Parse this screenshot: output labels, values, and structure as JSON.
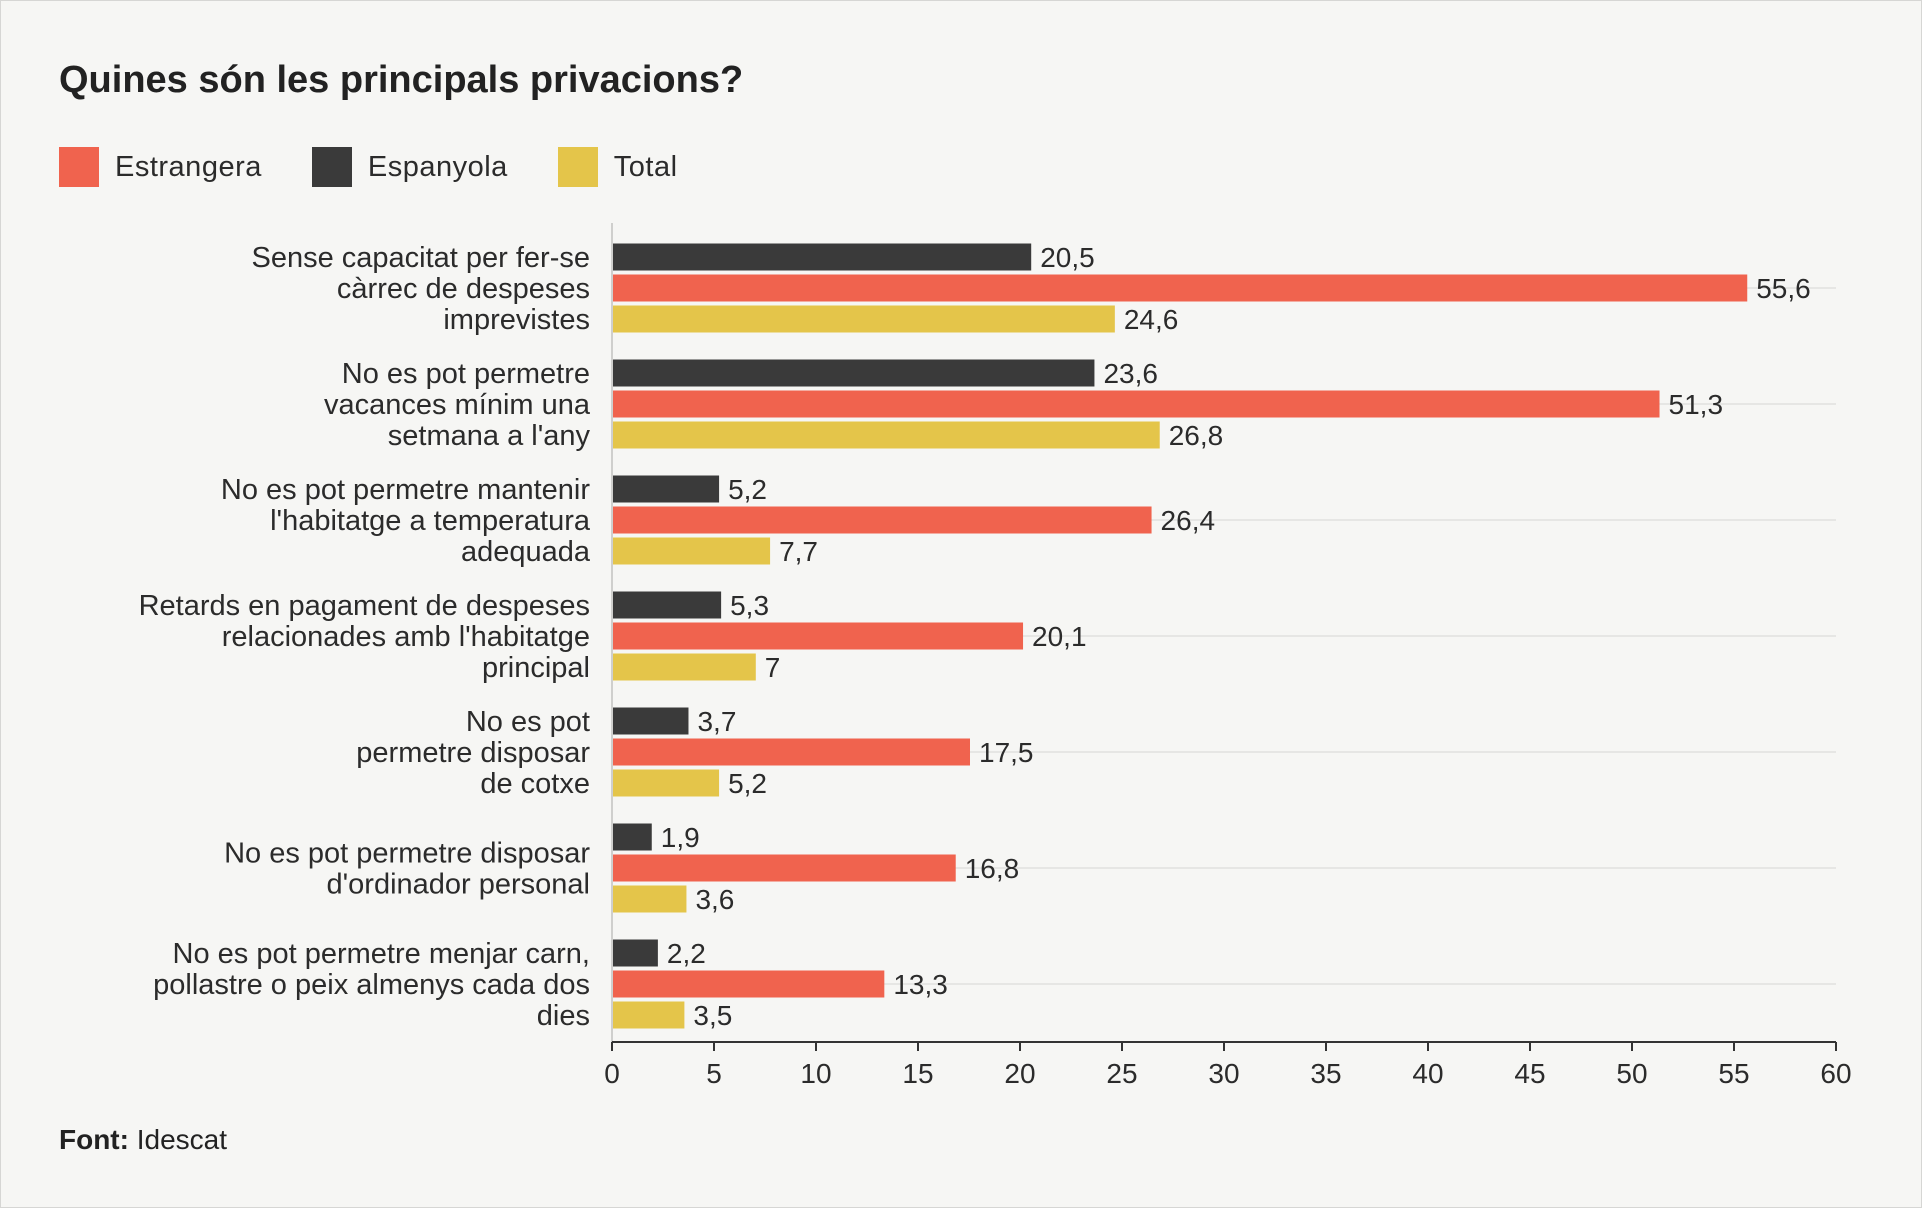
{
  "colors": {
    "estrangera": "#f0634e",
    "espanyola": "#3a3a3a",
    "total": "#e4c54a",
    "grid": "#e6e6e4",
    "axis": "#333333",
    "text": "#2b2b2b"
  },
  "source": {
    "label": "Font:",
    "value": "Idescat"
  },
  "chart_data": {
    "type": "bar",
    "orientation": "horizontal",
    "title": "Quines són les principals privacions?",
    "legend": [
      "Estrangera",
      "Espanyola",
      "Total"
    ],
    "legend_position": "top-left",
    "categories": [
      [
        "Sense capacitat per fer-se",
        "càrrec de despeses",
        "imprevistes"
      ],
      [
        "No es pot permetre",
        "vacances mínim una",
        "setmana a l'any"
      ],
      [
        "No es pot permetre mantenir",
        "l'habitatge a temperatura",
        "adequada"
      ],
      [
        "Retards en pagament de despeses",
        "relacionades amb l'habitatge",
        "principal"
      ],
      [
        "No es pot",
        "permetre disposar",
        "de cotxe"
      ],
      [
        "No es pot permetre disposar",
        "d'ordinador personal"
      ],
      [
        "No es pot permetre menjar carn,",
        "pollastre o peix almenys cada dos",
        "dies"
      ]
    ],
    "series": [
      {
        "name": "Espanyola",
        "color_key": "espanyola",
        "values": [
          20.5,
          23.6,
          5.2,
          5.3,
          3.7,
          1.9,
          2.2
        ],
        "labels": [
          "20,5",
          "23,6",
          "5,2",
          "5,3",
          "3,7",
          "1,9",
          "2,2"
        ]
      },
      {
        "name": "Estrangera",
        "color_key": "estrangera",
        "values": [
          55.6,
          51.3,
          26.4,
          20.1,
          17.5,
          16.8,
          13.3
        ],
        "labels": [
          "55,6",
          "51,3",
          "26,4",
          "20,1",
          "17,5",
          "16,8",
          "13,3"
        ]
      },
      {
        "name": "Total",
        "color_key": "total",
        "values": [
          24.6,
          26.8,
          7.7,
          7,
          5.2,
          3.6,
          3.5
        ],
        "labels": [
          "24,6",
          "26,8",
          "7,7",
          "7",
          "5,2",
          "3,6",
          "3,5"
        ]
      }
    ],
    "xlim": [
      0,
      60
    ],
    "xticks": [
      0,
      5,
      10,
      15,
      20,
      25,
      30,
      35,
      40,
      45,
      50,
      55,
      60
    ],
    "xlabel": "",
    "ylabel": "",
    "grid": true
  }
}
